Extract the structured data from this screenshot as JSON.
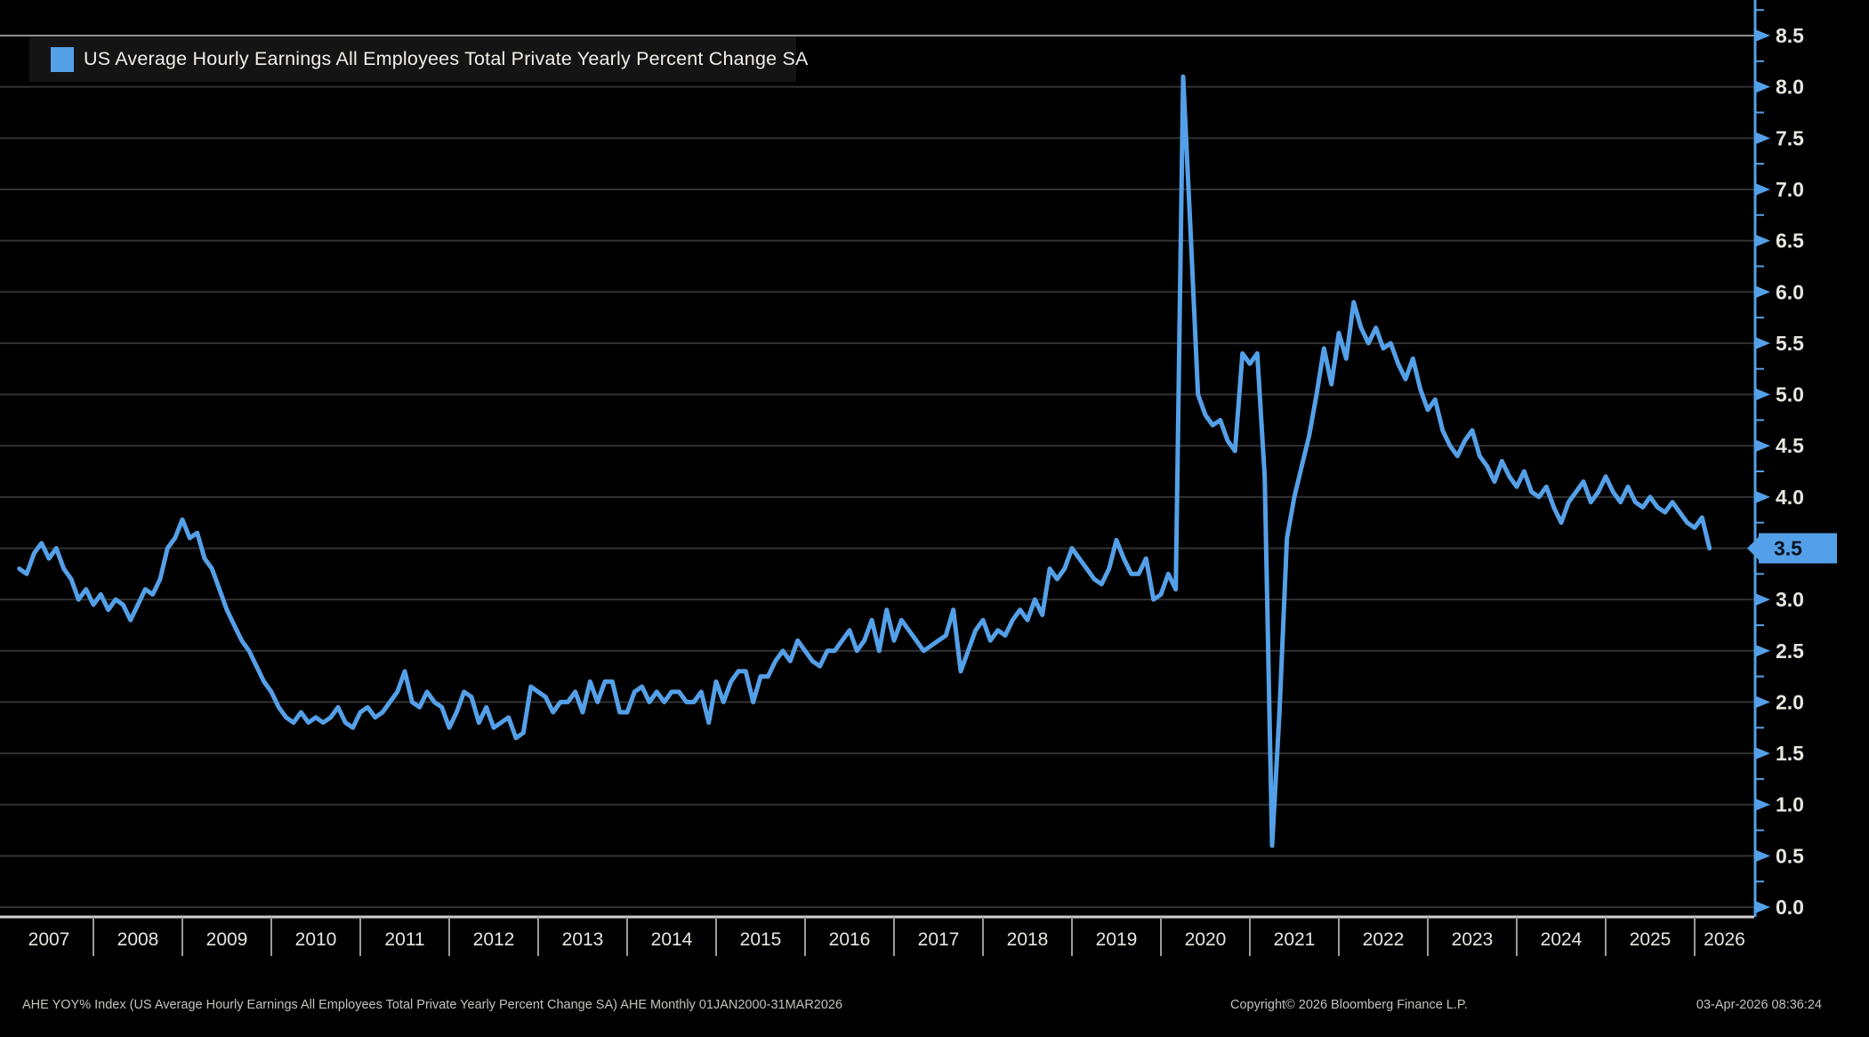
{
  "legend": {
    "label": "US Average Hourly Earnings All Employees Total Private Yearly Percent Change SA"
  },
  "footer": {
    "description": "AHE YOY% Index (US Average Hourly Earnings All Employees Total Private Yearly Percent Change SA) AHE Monthly 01JAN2000-31MAR2026",
    "copyright": "Copyright© 2026 Bloomberg Finance L.P.",
    "timestamp": "03-Apr-2026 08:36:24"
  },
  "colors": {
    "background": "#000000",
    "line": "#54a0e8",
    "grid": "#323232",
    "grid_top": "#8f8f8f",
    "axis_text": "#e9e6df",
    "x_axis": "#cfcfcf",
    "x_tick": "#9a9a9a",
    "tag_bg": "#54a0e8",
    "tag_text": "#06121c",
    "footer_text": "#c6c2ba",
    "legend_bg": "#141414"
  },
  "chart_data": {
    "type": "line",
    "title": "US Average Hourly Earnings All Employees Total Private Yearly Percent Change SA",
    "xlabel": "",
    "ylabel": "",
    "grid": "horizontal",
    "legend_position": "top-left",
    "ylim": [
      0.0,
      8.75
    ],
    "y_tick_step": 0.5,
    "y_minor_tick_step": 0.25,
    "x_tick_labels": [
      "2007",
      "2008",
      "2009",
      "2010",
      "2011",
      "2012",
      "2013",
      "2014",
      "2015",
      "2016",
      "2017",
      "2018",
      "2019",
      "2020",
      "2021",
      "2022",
      "2023",
      "2024",
      "2025",
      "2026"
    ],
    "y_tick_labels": [
      "0.0",
      "0.5",
      "1.0",
      "1.5",
      "2.0",
      "2.5",
      "3.0",
      "3.5",
      "4.0",
      "4.5",
      "5.0",
      "5.5",
      "6.0",
      "6.5",
      "7.0",
      "7.5",
      "8.0",
      "8.5"
    ],
    "last_value_label": "3.5",
    "series": [
      {
        "name": "US Average Hourly Earnings All Employees Total Private Yearly Percent Change SA",
        "color": "#54a0e8",
        "frequency": "monthly",
        "start_year": 2007,
        "start_month": 3,
        "end_label": "31MAR2026",
        "values": [
          3.3,
          3.25,
          3.45,
          3.55,
          3.4,
          3.5,
          3.3,
          3.2,
          3.0,
          3.1,
          2.95,
          3.05,
          2.9,
          3.0,
          2.95,
          2.8,
          2.95,
          3.1,
          3.05,
          3.2,
          3.5,
          3.6,
          3.78,
          3.6,
          3.65,
          3.4,
          3.3,
          3.1,
          2.9,
          2.75,
          2.6,
          2.5,
          2.35,
          2.2,
          2.1,
          1.95,
          1.85,
          1.8,
          1.9,
          1.8,
          1.85,
          1.8,
          1.85,
          1.95,
          1.8,
          1.75,
          1.9,
          1.95,
          1.85,
          1.9,
          2.0,
          2.1,
          2.3,
          2.0,
          1.95,
          2.1,
          2.0,
          1.95,
          1.75,
          1.9,
          2.1,
          2.05,
          1.8,
          1.95,
          1.75,
          1.8,
          1.85,
          1.65,
          1.7,
          2.15,
          2.1,
          2.05,
          1.9,
          2.0,
          2.0,
          2.1,
          1.9,
          2.2,
          2.0,
          2.2,
          2.2,
          1.9,
          1.9,
          2.1,
          2.15,
          2.0,
          2.1,
          2.0,
          2.1,
          2.1,
          2.0,
          2.0,
          2.1,
          1.8,
          2.2,
          2.0,
          2.2,
          2.3,
          2.3,
          2.0,
          2.25,
          2.25,
          2.4,
          2.5,
          2.4,
          2.6,
          2.5,
          2.4,
          2.35,
          2.5,
          2.5,
          2.6,
          2.7,
          2.5,
          2.6,
          2.8,
          2.5,
          2.9,
          2.6,
          2.8,
          2.7,
          2.6,
          2.5,
          2.55,
          2.6,
          2.65,
          2.9,
          2.3,
          2.5,
          2.7,
          2.8,
          2.6,
          2.7,
          2.65,
          2.8,
          2.9,
          2.8,
          3.0,
          2.85,
          3.3,
          3.2,
          3.3,
          3.5,
          3.4,
          3.3,
          3.2,
          3.15,
          3.3,
          3.58,
          3.4,
          3.25,
          3.25,
          3.4,
          3.0,
          3.05,
          3.25,
          3.1,
          8.1,
          6.6,
          5.0,
          4.8,
          4.7,
          4.75,
          4.55,
          4.45,
          5.4,
          5.3,
          5.4,
          4.2,
          0.6,
          1.9,
          3.6,
          4.0,
          4.3,
          4.6,
          5.0,
          5.45,
          5.1,
          5.6,
          5.35,
          5.9,
          5.65,
          5.5,
          5.65,
          5.45,
          5.5,
          5.3,
          5.15,
          5.35,
          5.05,
          4.85,
          4.95,
          4.65,
          4.5,
          4.4,
          4.55,
          4.65,
          4.4,
          4.3,
          4.15,
          4.35,
          4.2,
          4.1,
          4.25,
          4.05,
          4.0,
          4.1,
          3.9,
          3.75,
          3.95,
          4.05,
          4.15,
          3.95,
          4.05,
          4.2,
          4.05,
          3.95,
          4.1,
          3.95,
          3.9,
          4.0,
          3.9,
          3.85,
          3.95,
          3.85,
          3.75,
          3.7,
          3.8,
          3.5
        ]
      }
    ]
  }
}
